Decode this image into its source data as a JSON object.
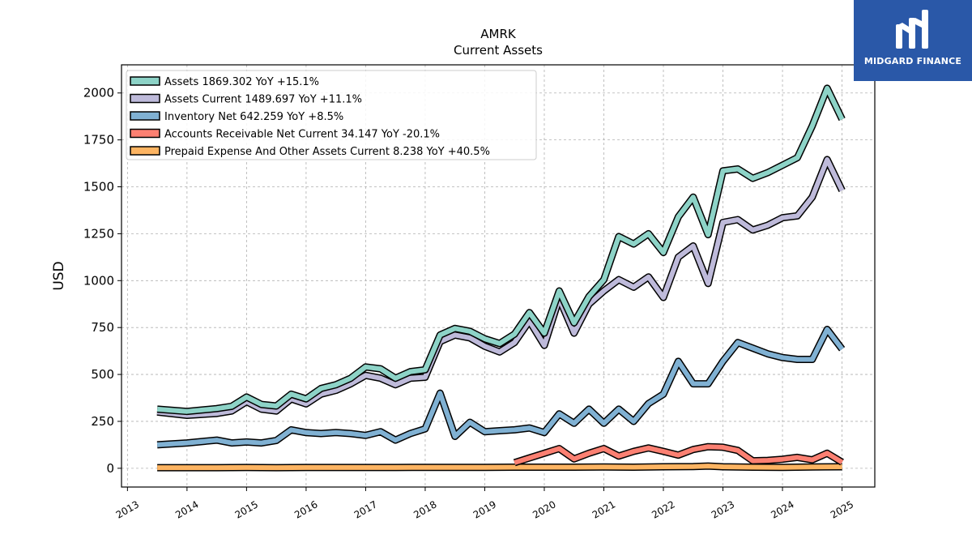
{
  "chart_data": {
    "type": "line",
    "title": "AMRK",
    "subtitle": "Current  Assets",
    "ylabel": "USD",
    "xlim": [
      2012.9,
      2025.55
    ],
    "ylim": [
      -100,
      2150
    ],
    "yticks": [
      0,
      250,
      500,
      750,
      1000,
      1250,
      1500,
      1750,
      2000
    ],
    "xticks": [
      2013,
      2014,
      2015,
      2016,
      2017,
      2018,
      2019,
      2020,
      2021,
      2022,
      2023,
      2024,
      2025
    ],
    "grid": true,
    "legend": "top-left",
    "series": [
      {
        "name": "Assets",
        "legend_label": "Assets  1869.302 YoY +15.1%",
        "color": "#8dd3c7",
        "x": [
          2013.5,
          2014.0,
          2014.5,
          2014.75,
          2015.0,
          2015.25,
          2015.5,
          2015.75,
          2016.0,
          2016.25,
          2016.5,
          2016.75,
          2017.0,
          2017.25,
          2017.5,
          2017.75,
          2018.0,
          2018.25,
          2018.5,
          2018.75,
          2019.0,
          2019.25,
          2019.5,
          2019.75,
          2020.0,
          2020.25,
          2020.5,
          2020.75,
          2021.0,
          2021.25,
          2021.5,
          2021.75,
          2022.0,
          2022.25,
          2022.5,
          2022.75,
          2023.0,
          2023.25,
          2023.5,
          2023.75,
          2024.0,
          2024.25,
          2024.5,
          2024.75,
          2025.0
        ],
        "values": [
          315,
          303,
          318,
          330,
          380,
          340,
          332,
          395,
          370,
          425,
          445,
          480,
          540,
          530,
          480,
          515,
          525,
          710,
          745,
          730,
          690,
          665,
          715,
          830,
          720,
          945,
          775,
          915,
          1005,
          1235,
          1195,
          1250,
          1150,
          1340,
          1445,
          1245,
          1585,
          1595,
          1545,
          1575,
          1615,
          1655,
          1825,
          2025,
          1860
        ]
      },
      {
        "name": "Assets Current",
        "legend_label": "Assets Current  1489.697 YoY +11.1%",
        "color": "#bebada",
        "x": [
          2013.5,
          2014.0,
          2014.5,
          2014.75,
          2015.0,
          2015.25,
          2015.5,
          2015.75,
          2016.0,
          2016.25,
          2016.5,
          2016.75,
          2017.0,
          2017.25,
          2017.5,
          2017.75,
          2018.0,
          2018.25,
          2018.5,
          2018.75,
          2019.0,
          2019.25,
          2019.5,
          2019.75,
          2020.0,
          2020.25,
          2020.5,
          2020.75,
          2021.0,
          2021.25,
          2021.5,
          2021.75,
          2022.0,
          2022.25,
          2022.5,
          2022.75,
          2023.0,
          2023.25,
          2023.5,
          2023.75,
          2024.0,
          2024.25,
          2024.5,
          2024.75,
          2025.0
        ],
        "values": [
          300,
          282,
          292,
          305,
          355,
          315,
          305,
          370,
          343,
          395,
          415,
          450,
          495,
          480,
          445,
          480,
          485,
          675,
          710,
          695,
          650,
          620,
          670,
          785,
          655,
          905,
          720,
          875,
          945,
          1005,
          965,
          1020,
          910,
          1125,
          1185,
          985,
          1310,
          1325,
          1270,
          1295,
          1335,
          1345,
          1445,
          1645,
          1480
        ]
      },
      {
        "name": "Inventory Net",
        "legend_label": "Inventory Net  642.259 YoY +8.5%",
        "color": "#80b1d3",
        "x": [
          2013.5,
          2014.0,
          2014.5,
          2014.75,
          2015.0,
          2015.25,
          2015.5,
          2015.75,
          2016.0,
          2016.25,
          2016.5,
          2016.75,
          2017.0,
          2017.25,
          2017.5,
          2017.75,
          2018.0,
          2018.25,
          2018.5,
          2018.75,
          2019.0,
          2019.25,
          2019.5,
          2019.75,
          2020.0,
          2020.25,
          2020.5,
          2020.75,
          2021.0,
          2021.25,
          2021.5,
          2021.75,
          2022.0,
          2022.25,
          2022.5,
          2022.75,
          2023.0,
          2023.25,
          2023.5,
          2023.75,
          2024.0,
          2024.25,
          2024.5,
          2024.75,
          2025.0
        ],
        "values": [
          125,
          135,
          150,
          135,
          140,
          135,
          148,
          205,
          190,
          185,
          190,
          185,
          175,
          195,
          150,
          185,
          210,
          400,
          170,
          245,
          195,
          200,
          205,
          215,
          190,
          290,
          240,
          315,
          240,
          315,
          250,
          345,
          395,
          570,
          450,
          450,
          570,
          670,
          640,
          610,
          590,
          580,
          580,
          740,
          635
        ]
      },
      {
        "name": "Accounts Receivable Net Current",
        "legend_label": "Accounts Receivable Net Current  34.147 YoY -20.1%",
        "color": "#fb8072",
        "x": [
          2019.5,
          2019.75,
          2020.0,
          2020.25,
          2020.5,
          2020.75,
          2021.0,
          2021.25,
          2021.5,
          2021.75,
          2022.0,
          2022.25,
          2022.5,
          2022.75,
          2023.0,
          2023.25,
          2023.5,
          2023.75,
          2024.0,
          2024.25,
          2024.5,
          2024.75,
          2025.0
        ],
        "values": [
          30,
          55,
          80,
          105,
          50,
          80,
          105,
          65,
          90,
          108,
          90,
          70,
          100,
          115,
          112,
          95,
          40,
          42,
          48,
          58,
          45,
          80,
          32
        ]
      },
      {
        "name": "Prepaid Expense And Other Assets Current",
        "legend_label": "Prepaid Expense And Other Assets Current  8.238 YoY +40.5%",
        "color": "#fdb462",
        "x": [
          2013.5,
          2014.0,
          2014.5,
          2015.0,
          2015.5,
          2016.0,
          2016.5,
          2017.0,
          2017.5,
          2018.0,
          2018.5,
          2019.0,
          2019.5,
          2020.0,
          2020.5,
          2021.0,
          2021.5,
          2022.0,
          2022.5,
          2022.75,
          2023.0,
          2023.5,
          2024.0,
          2024.5,
          2025.0
        ],
        "values": [
          3,
          3,
          3,
          4,
          3,
          4,
          4,
          4,
          4,
          5,
          5,
          5,
          6,
          6,
          6,
          7,
          6,
          8,
          9,
          12,
          8,
          6,
          5,
          7,
          8
        ]
      }
    ]
  },
  "logo": {
    "text": "MIDGARD FINANCE",
    "color": "#2a58a8"
  }
}
